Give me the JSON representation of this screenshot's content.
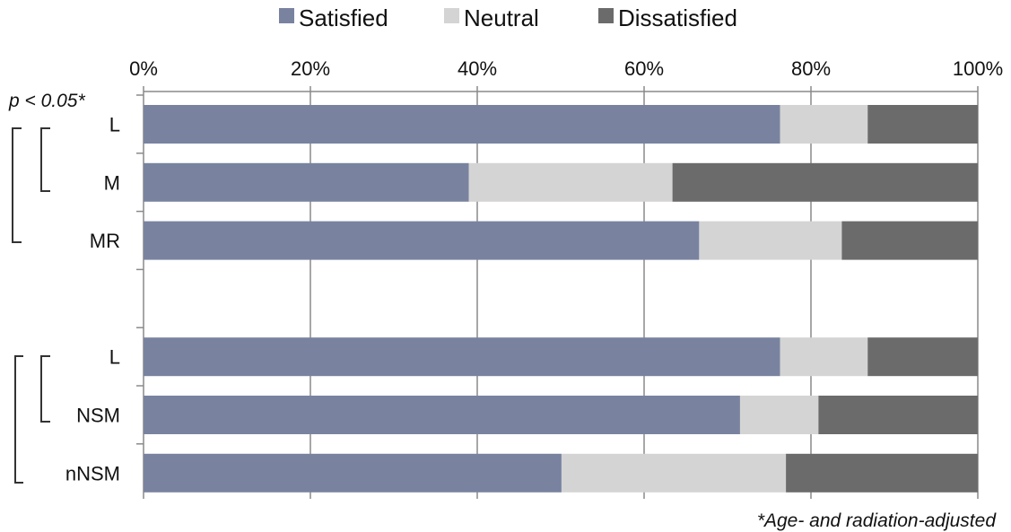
{
  "chart_data": {
    "type": "bar",
    "orientation": "horizontal",
    "stacked": "percent",
    "categories": [
      "L",
      "M",
      "MR",
      "",
      "L",
      "NSM",
      "nNSM"
    ],
    "series": [
      {
        "name": "Satisfied",
        "color": "#7983a0",
        "values": [
          76.3,
          39.0,
          66.6,
          null,
          76.3,
          71.5,
          50.1
        ]
      },
      {
        "name": "Neutral",
        "color": "#d4d4d4",
        "values": [
          10.5,
          24.4,
          17.1,
          null,
          10.5,
          9.4,
          26.9
        ]
      },
      {
        "name": "Dissatisfied",
        "color": "#6b6b6b",
        "values": [
          13.2,
          36.6,
          16.3,
          null,
          13.2,
          19.1,
          23.0
        ]
      }
    ],
    "xlim": [
      0,
      100
    ],
    "x_ticks": [
      "0%",
      "20%",
      "40%",
      "60%",
      "80%",
      "100%"
    ],
    "grid": true,
    "legend_position": "top",
    "axis_position": "top",
    "annotations": {
      "significance": "p < 0.05*",
      "footnote": "*Age- and radiation-adjusted"
    }
  }
}
